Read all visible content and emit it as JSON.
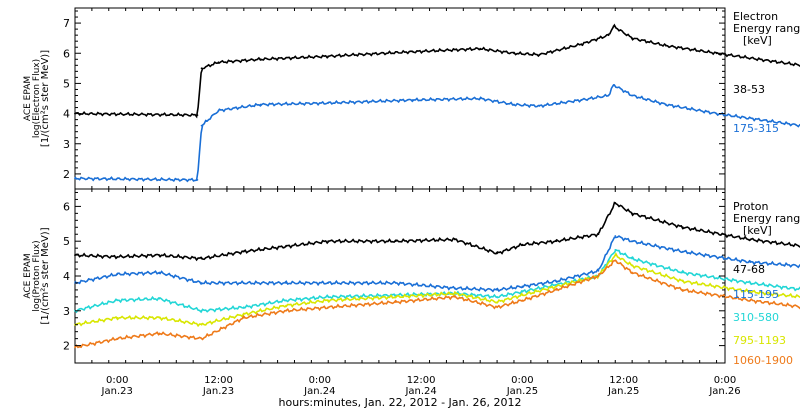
{
  "figure": {
    "time_label": "hours:minutes, Jan. 22, 2012 - Jan. 26, 2012"
  },
  "colors": {
    "black": "#000000",
    "blue": "#1a6fd6",
    "cyan": "#22d6d6",
    "yellow": "#d8e600",
    "orange": "#ee7a1a"
  },
  "chart_data": [
    {
      "type": "scatter",
      "title": "",
      "ylabel": [
        "ACE EPAM",
        "log(Electron Flux)",
        "[1/(cm²s ster MeV)]"
      ],
      "legend_title": [
        "Electron",
        "Energy ranges",
        "[keV]"
      ],
      "xlim": [
        "2012-01-22T19:00",
        "2012-01-26T00:00"
      ],
      "ylim": [
        1.5,
        7.5
      ],
      "yticks": [
        2,
        3,
        4,
        5,
        6,
        7
      ],
      "grid": false,
      "x_hours": [
        0,
        14.5,
        15,
        17,
        22,
        30,
        40,
        48,
        52,
        55,
        60,
        63.2,
        63.8,
        66,
        70,
        76,
        86,
        95
      ],
      "series": [
        {
          "name": "38-53",
          "color": "black",
          "values": [
            4.0,
            3.95,
            5.5,
            5.7,
            5.8,
            5.9,
            6.05,
            6.15,
            6.0,
            5.95,
            6.3,
            6.6,
            6.9,
            6.5,
            6.25,
            6.0,
            5.6,
            5.35
          ]
        },
        {
          "name": "175-315",
          "color": "blue",
          "values": [
            1.85,
            1.8,
            3.6,
            4.1,
            4.3,
            4.35,
            4.45,
            4.5,
            4.3,
            4.25,
            4.45,
            4.6,
            4.95,
            4.6,
            4.3,
            4.0,
            3.6,
            3.35
          ]
        }
      ]
    },
    {
      "type": "scatter",
      "title": "",
      "ylabel": [
        "ACE EPAM",
        "log(Proton Flux)",
        "[1/(cm²s ster MeV)]"
      ],
      "legend_title": [
        "Proton",
        "Energy ranges",
        "[keV]"
      ],
      "xlim": [
        "2012-01-22T19:00",
        "2012-01-26T00:00"
      ],
      "ylim": [
        1.5,
        6.5
      ],
      "yticks": [
        2,
        3,
        4,
        5,
        6
      ],
      "grid": false,
      "xticks": [
        {
          "time": "0:00",
          "date": "Jan.23"
        },
        {
          "time": "12:00",
          "date": "Jan.23"
        },
        {
          "time": "0:00",
          "date": "Jan.24"
        },
        {
          "time": "12:00",
          "date": "Jan.24"
        },
        {
          "time": "0:00",
          "date": "Jan.25"
        },
        {
          "time": "12:00",
          "date": "Jan.25"
        },
        {
          "time": "0:00",
          "date": "Jan.26"
        }
      ],
      "x_hours": [
        0,
        5,
        10,
        15,
        20,
        25,
        30,
        38,
        45,
        50,
        53,
        57,
        62,
        64,
        66,
        72,
        80,
        88,
        95
      ],
      "series": [
        {
          "name": "47-68",
          "color": "black",
          "values": [
            4.6,
            4.55,
            4.6,
            4.5,
            4.7,
            4.85,
            5.0,
            5.0,
            5.05,
            4.65,
            4.9,
            5.0,
            5.2,
            6.1,
            5.8,
            5.4,
            5.05,
            4.8,
            4.7
          ]
        },
        {
          "name": "115-195",
          "color": "blue",
          "values": [
            3.8,
            4.05,
            4.1,
            3.8,
            3.8,
            3.8,
            3.8,
            3.8,
            3.65,
            3.6,
            3.7,
            3.85,
            4.15,
            5.15,
            5.0,
            4.7,
            4.4,
            4.25,
            4.15
          ]
        },
        {
          "name": "310-580",
          "color": "cyan",
          "values": [
            3.0,
            3.3,
            3.35,
            3.0,
            3.1,
            3.3,
            3.4,
            3.45,
            3.5,
            3.4,
            3.55,
            3.75,
            4.0,
            4.75,
            4.5,
            4.1,
            3.8,
            3.55,
            3.5
          ]
        },
        {
          "name": "795-1193",
          "color": "yellow",
          "values": [
            2.6,
            2.8,
            2.8,
            2.6,
            2.9,
            3.15,
            3.3,
            3.4,
            3.5,
            3.25,
            3.45,
            3.7,
            4.0,
            4.6,
            4.3,
            3.85,
            3.55,
            3.35,
            3.25
          ]
        },
        {
          "name": "1060-1900",
          "color": "orange",
          "values": [
            1.95,
            2.2,
            2.35,
            2.2,
            2.8,
            3.0,
            3.1,
            3.25,
            3.4,
            3.1,
            3.3,
            3.6,
            4.0,
            4.45,
            4.1,
            3.6,
            3.3,
            3.05,
            2.85
          ]
        }
      ]
    }
  ]
}
